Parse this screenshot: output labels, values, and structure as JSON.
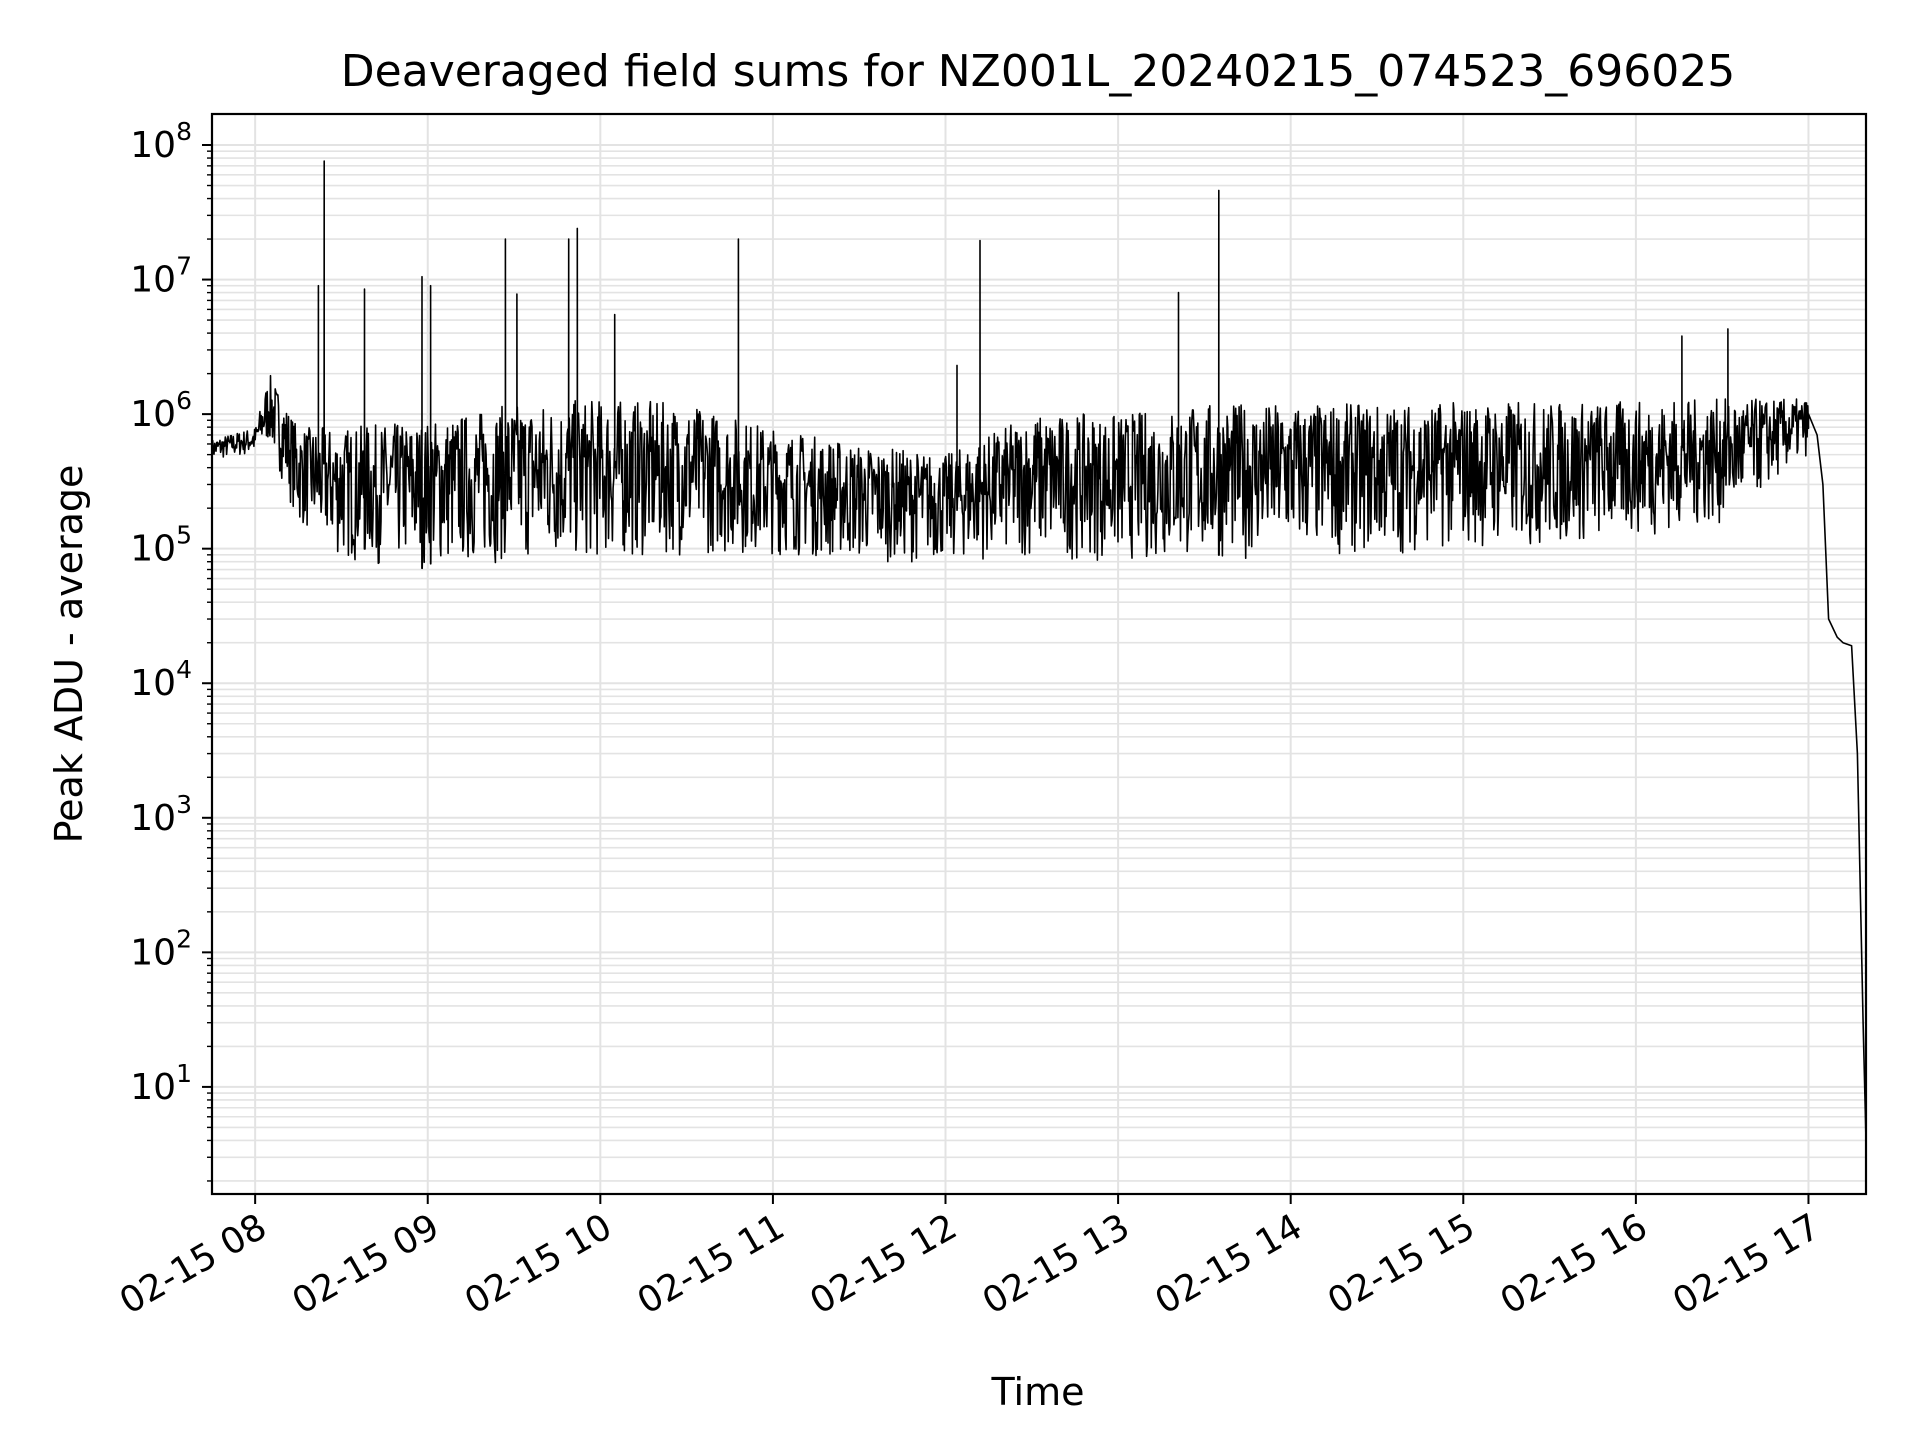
{
  "chart_data": {
    "type": "line",
    "title": "Deaveraged field sums for NZ001L_20240215_074523_696025",
    "xlabel": "Time",
    "ylabel": "Peak ADU - average",
    "yscale": "log",
    "ylim": [
      1.6,
      170000000
    ],
    "xlim": [
      "2024-02-15 07:45",
      "2024-02-15 17:20"
    ],
    "x_ticks": [
      "2024-02-15 08:00",
      "2024-02-15 09:00",
      "2024-02-15 10:00",
      "2024-02-15 11:00",
      "2024-02-15 12:00",
      "2024-02-15 13:00",
      "2024-02-15 14:00",
      "2024-02-15 15:00",
      "2024-02-15 16:00",
      "2024-02-15 17:00"
    ],
    "x_tick_labels": [
      "02-15 08",
      "02-15 09",
      "02-15 10",
      "02-15 11",
      "02-15 12",
      "02-15 13",
      "02-15 14",
      "02-15 15",
      "02-15 16",
      "02-15 17"
    ],
    "y_tick_exponents": [
      "1",
      "2",
      "3",
      "4",
      "5",
      "6",
      "7",
      "8"
    ],
    "grid": true,
    "line_color": "#000000",
    "grid_color": "#e3e3e3",
    "envelope": {
      "x": [
        "2024-02-15 07:45",
        "2024-02-15 08:00",
        "2024-02-15 08:05",
        "2024-02-15 08:15",
        "2024-02-15 08:30",
        "2024-02-15 09:00",
        "2024-02-15 09:30",
        "2024-02-15 10:00",
        "2024-02-15 10:30",
        "2024-02-15 11:00",
        "2024-02-15 11:30",
        "2024-02-15 12:00",
        "2024-02-15 12:30",
        "2024-02-15 13:00",
        "2024-02-15 13:30",
        "2024-02-15 14:00",
        "2024-02-15 14:30",
        "2024-02-15 15:00",
        "2024-02-15 15:30",
        "2024-02-15 16:00",
        "2024-02-15 16:30",
        "2024-02-15 17:00"
      ],
      "low": [
        450000,
        500000,
        600000,
        150000,
        80000,
        70000,
        80000,
        80000,
        90000,
        90000,
        80000,
        80000,
        85000,
        80000,
        80000,
        90000,
        90000,
        100000,
        100000,
        120000,
        150000,
        500000
      ],
      "high": [
        650000,
        800000,
        2000000,
        800000,
        800000,
        900000,
        1200000,
        1300000,
        1200000,
        800000,
        600000,
        500000,
        1000000,
        1000000,
        1200000,
        1200000,
        1200000,
        1250000,
        1250000,
        1250000,
        1300000,
        1300000
      ]
    },
    "spikes": [
      {
        "x": "2024-02-15 08:24",
        "y": 76000000
      },
      {
        "x": "2024-02-15 08:22",
        "y": 9000000
      },
      {
        "x": "2024-02-15 08:38",
        "y": 8500000
      },
      {
        "x": "2024-02-15 08:58",
        "y": 10500000
      },
      {
        "x": "2024-02-15 09:01",
        "y": 9000000
      },
      {
        "x": "2024-02-15 09:27",
        "y": 20000000
      },
      {
        "x": "2024-02-15 09:31",
        "y": 7800000
      },
      {
        "x": "2024-02-15 09:49",
        "y": 20000000
      },
      {
        "x": "2024-02-15 09:52",
        "y": 24000000
      },
      {
        "x": "2024-02-15 10:05",
        "y": 5500000
      },
      {
        "x": "2024-02-15 10:48",
        "y": 20000000
      },
      {
        "x": "2024-02-15 12:04",
        "y": 2300000
      },
      {
        "x": "2024-02-15 12:12",
        "y": 19500000
      },
      {
        "x": "2024-02-15 13:21",
        "y": 8000000
      },
      {
        "x": "2024-02-15 13:35",
        "y": 46000000
      },
      {
        "x": "2024-02-15 16:16",
        "y": 3800000
      },
      {
        "x": "2024-02-15 16:32",
        "y": 4300000
      }
    ],
    "tail": {
      "x": [
        "2024-02-15 17:00",
        "2024-02-15 17:03",
        "2024-02-15 17:05",
        "2024-02-15 17:07",
        "2024-02-15 17:10",
        "2024-02-15 17:12",
        "2024-02-15 17:15",
        "2024-02-15 17:17",
        "2024-02-15 17:19",
        "2024-02-15 17:20"
      ],
      "y": [
        1000000,
        700000,
        300000,
        30000,
        22000,
        20000,
        19000,
        3000,
        30,
        4
      ]
    }
  }
}
